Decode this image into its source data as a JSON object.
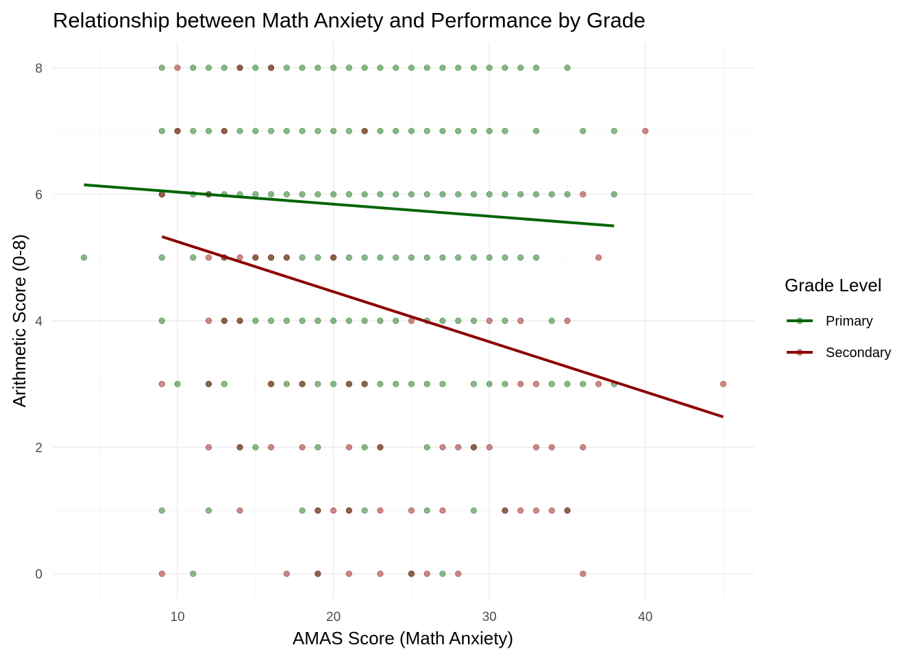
{
  "chart_data": {
    "type": "scatter",
    "title": "Relationship between Math Anxiety and Performance by Grade",
    "xlabel": "AMAS Score (Math Anxiety)",
    "ylabel": "Arithmetic Score (0-8)",
    "xlim": [
      2.0,
      47.0
    ],
    "ylim": [
      -0.4,
      8.4
    ],
    "x_ticks": [
      10,
      20,
      30,
      40
    ],
    "y_ticks": [
      0,
      2,
      4,
      6,
      8
    ],
    "grid": true,
    "legend": {
      "title": "Grade Level",
      "placement": "right",
      "entries": [
        "Primary",
        "Secondary"
      ]
    },
    "series": [
      {
        "name": "Primary",
        "color": "#006400",
        "points": [
          [
            9,
            8
          ],
          [
            11,
            8
          ],
          [
            12,
            8
          ],
          [
            13,
            8
          ],
          [
            14,
            8
          ],
          [
            15,
            8
          ],
          [
            16,
            8
          ],
          [
            17,
            8
          ],
          [
            18,
            8
          ],
          [
            19,
            8
          ],
          [
            20,
            8
          ],
          [
            21,
            8
          ],
          [
            22,
            8
          ],
          [
            23,
            8
          ],
          [
            24,
            8
          ],
          [
            25,
            8
          ],
          [
            26,
            8
          ],
          [
            27,
            8
          ],
          [
            28,
            8
          ],
          [
            29,
            8
          ],
          [
            30,
            8
          ],
          [
            31,
            8
          ],
          [
            32,
            8
          ],
          [
            33,
            8
          ],
          [
            35,
            8
          ],
          [
            9,
            7
          ],
          [
            10,
            7
          ],
          [
            11,
            7
          ],
          [
            12,
            7
          ],
          [
            13,
            7
          ],
          [
            14,
            7
          ],
          [
            15,
            7
          ],
          [
            16,
            7
          ],
          [
            17,
            7
          ],
          [
            18,
            7
          ],
          [
            19,
            7
          ],
          [
            20,
            7
          ],
          [
            21,
            7
          ],
          [
            22,
            7
          ],
          [
            23,
            7
          ],
          [
            24,
            7
          ],
          [
            25,
            7
          ],
          [
            26,
            7
          ],
          [
            27,
            7
          ],
          [
            28,
            7
          ],
          [
            29,
            7
          ],
          [
            30,
            7
          ],
          [
            31,
            7
          ],
          [
            33,
            7
          ],
          [
            36,
            7
          ],
          [
            38,
            7
          ],
          [
            9,
            6
          ],
          [
            11,
            6
          ],
          [
            12,
            6
          ],
          [
            13,
            6
          ],
          [
            14,
            6
          ],
          [
            15,
            6
          ],
          [
            16,
            6
          ],
          [
            17,
            6
          ],
          [
            18,
            6
          ],
          [
            19,
            6
          ],
          [
            20,
            6
          ],
          [
            21,
            6
          ],
          [
            22,
            6
          ],
          [
            23,
            6
          ],
          [
            24,
            6
          ],
          [
            25,
            6
          ],
          [
            26,
            6
          ],
          [
            27,
            6
          ],
          [
            28,
            6
          ],
          [
            29,
            6
          ],
          [
            30,
            6
          ],
          [
            31,
            6
          ],
          [
            32,
            6
          ],
          [
            33,
            6
          ],
          [
            34,
            6
          ],
          [
            35,
            6
          ],
          [
            38,
            6
          ],
          [
            4,
            5
          ],
          [
            9,
            5
          ],
          [
            11,
            5
          ],
          [
            13,
            5
          ],
          [
            15,
            5
          ],
          [
            16,
            5
          ],
          [
            17,
            5
          ],
          [
            18,
            5
          ],
          [
            19,
            5
          ],
          [
            20,
            5
          ],
          [
            21,
            5
          ],
          [
            22,
            5
          ],
          [
            23,
            5
          ],
          [
            24,
            5
          ],
          [
            25,
            5
          ],
          [
            26,
            5
          ],
          [
            27,
            5
          ],
          [
            28,
            5
          ],
          [
            29,
            5
          ],
          [
            30,
            5
          ],
          [
            31,
            5
          ],
          [
            32,
            5
          ],
          [
            33,
            5
          ],
          [
            9,
            4
          ],
          [
            13,
            4
          ],
          [
            14,
            4
          ],
          [
            15,
            4
          ],
          [
            16,
            4
          ],
          [
            17,
            4
          ],
          [
            18,
            4
          ],
          [
            19,
            4
          ],
          [
            20,
            4
          ],
          [
            21,
            4
          ],
          [
            22,
            4
          ],
          [
            23,
            4
          ],
          [
            24,
            4
          ],
          [
            26,
            4
          ],
          [
            27,
            4
          ],
          [
            28,
            4
          ],
          [
            29,
            4
          ],
          [
            31,
            4
          ],
          [
            34,
            4
          ],
          [
            10,
            3
          ],
          [
            12,
            3
          ],
          [
            13,
            3
          ],
          [
            16,
            3
          ],
          [
            17,
            3
          ],
          [
            18,
            3
          ],
          [
            19,
            3
          ],
          [
            20,
            3
          ],
          [
            21,
            3
          ],
          [
            22,
            3
          ],
          [
            23,
            3
          ],
          [
            24,
            3
          ],
          [
            25,
            3
          ],
          [
            26,
            3
          ],
          [
            27,
            3
          ],
          [
            29,
            3
          ],
          [
            30,
            3
          ],
          [
            31,
            3
          ],
          [
            34,
            3
          ],
          [
            35,
            3
          ],
          [
            36,
            3
          ],
          [
            38,
            3
          ],
          [
            14,
            2
          ],
          [
            15,
            2
          ],
          [
            19,
            2
          ],
          [
            22,
            2
          ],
          [
            23,
            2
          ],
          [
            26,
            2
          ],
          [
            29,
            2
          ],
          [
            9,
            1
          ],
          [
            12,
            1
          ],
          [
            18,
            1
          ],
          [
            19,
            1
          ],
          [
            21,
            1
          ],
          [
            22,
            1
          ],
          [
            26,
            1
          ],
          [
            29,
            1
          ],
          [
            31,
            1
          ],
          [
            35,
            1
          ],
          [
            11,
            0
          ],
          [
            19,
            0
          ],
          [
            25,
            0
          ],
          [
            27,
            0
          ]
        ]
      },
      {
        "name": "Secondary",
        "color": "#8B0000",
        "points": [
          [
            10,
            8
          ],
          [
            14,
            8
          ],
          [
            16,
            8
          ],
          [
            10,
            7
          ],
          [
            13,
            7
          ],
          [
            22,
            7
          ],
          [
            40,
            7
          ],
          [
            9,
            6
          ],
          [
            12,
            6
          ],
          [
            36,
            6
          ],
          [
            12,
            5
          ],
          [
            13,
            5
          ],
          [
            14,
            5
          ],
          [
            15,
            5
          ],
          [
            16,
            5
          ],
          [
            17,
            5
          ],
          [
            20,
            5
          ],
          [
            37,
            5
          ],
          [
            12,
            4
          ],
          [
            13,
            4
          ],
          [
            14,
            4
          ],
          [
            25,
            4
          ],
          [
            30,
            4
          ],
          [
            32,
            4
          ],
          [
            35,
            4
          ],
          [
            9,
            3
          ],
          [
            12,
            3
          ],
          [
            16,
            3
          ],
          [
            18,
            3
          ],
          [
            21,
            3
          ],
          [
            22,
            3
          ],
          [
            32,
            3
          ],
          [
            33,
            3
          ],
          [
            37,
            3
          ],
          [
            45,
            3
          ],
          [
            12,
            2
          ],
          [
            14,
            2
          ],
          [
            16,
            2
          ],
          [
            18,
            2
          ],
          [
            21,
            2
          ],
          [
            23,
            2
          ],
          [
            27,
            2
          ],
          [
            28,
            2
          ],
          [
            29,
            2
          ],
          [
            30,
            2
          ],
          [
            33,
            2
          ],
          [
            34,
            2
          ],
          [
            36,
            2
          ],
          [
            14,
            1
          ],
          [
            19,
            1
          ],
          [
            20,
            1
          ],
          [
            21,
            1
          ],
          [
            23,
            1
          ],
          [
            25,
            1
          ],
          [
            27,
            1
          ],
          [
            31,
            1
          ],
          [
            32,
            1
          ],
          [
            33,
            1
          ],
          [
            34,
            1
          ],
          [
            35,
            1
          ],
          [
            9,
            0
          ],
          [
            17,
            0
          ],
          [
            19,
            0
          ],
          [
            21,
            0
          ],
          [
            23,
            0
          ],
          [
            25,
            0
          ],
          [
            26,
            0
          ],
          [
            28,
            0
          ],
          [
            36,
            0
          ]
        ]
      }
    ],
    "trend_lines": [
      {
        "series": "Primary",
        "x": [
          4,
          38
        ],
        "y": [
          6.15,
          5.5
        ]
      },
      {
        "series": "Secondary",
        "x": [
          9,
          45
        ],
        "y": [
          5.33,
          2.48
        ]
      }
    ]
  }
}
